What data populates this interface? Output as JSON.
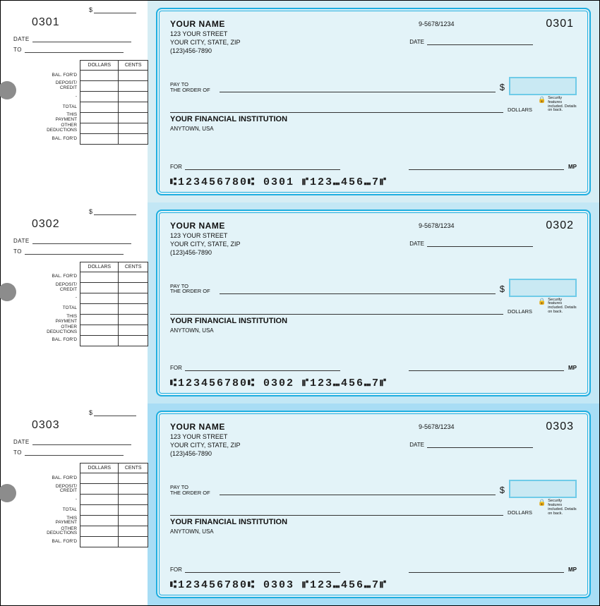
{
  "colors": {
    "check_border": "#1faee0",
    "check_bg": "#e3f3f8",
    "amount_box_border": "#6fcbe8",
    "amount_box_fill": "#c9e9f3",
    "hole": "#8c8c8c",
    "stub_bg": "#ffffff",
    "panel_bgs": [
      "#d6edf4",
      "#c3e7f5",
      "#a8ddf5"
    ]
  },
  "labels": {
    "date": "DATE",
    "to": "TO",
    "dollars_h": "DOLLARS",
    "cents_h": "CENTS",
    "bal_ford": "BAL. FOR'D",
    "dep_credit": "DEPOSIT/\nCREDIT",
    "total": "TOTAL",
    "this_payment": "THIS\nPAYMENT",
    "other_ded": "OTHER\nDEDUCTIONS",
    "payto_a": "PAY TO",
    "payto_b": "THE ORDER OF",
    "dollars_word": "DOLLARS",
    "for": "FOR",
    "mp": "MP",
    "sec": "Security features included. Details on back."
  },
  "payer": {
    "name": "YOUR NAME",
    "street": "123 YOUR STREET",
    "csz": "YOUR CITY, STATE, ZIP",
    "phone": "(123)456-7890"
  },
  "institution": {
    "name": "YOUR FINANCIAL INSTITUTION",
    "loc": "ANYTOWN, USA"
  },
  "bank_code": "9-5678/1234",
  "checks": [
    {
      "number": "0301",
      "micr": "⑆123456780⑆  0301  ⑈123⑉456⑉7⑈"
    },
    {
      "number": "0302",
      "micr": "⑆123456780⑆  0302  ⑈123⑉456⑉7⑈"
    },
    {
      "number": "0303",
      "micr": "⑆123456780⑆  0303  ⑈123⑉456⑉7⑈"
    }
  ]
}
